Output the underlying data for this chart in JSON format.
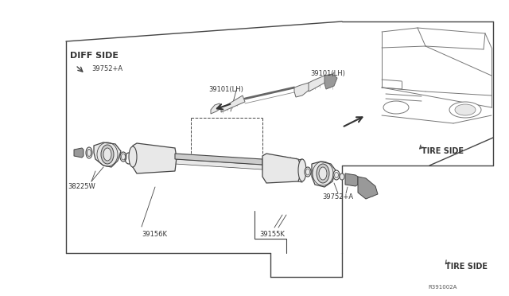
{
  "bg_color": "#f5f5f5",
  "line_color": "#444444",
  "gray_fill": "#cccccc",
  "light_fill": "#e8e8e8",
  "dark_fill": "#999999",
  "labels": {
    "diff_side": "DIFF SIDE",
    "tire_side_top": "TIRE SIDE",
    "tire_side_bottom": "TIRE SIDE",
    "part_39752A_top": "39752+A",
    "part_38225W": "38225W",
    "part_39156K": "39156K",
    "part_39101_LH_left": "39101(LH)",
    "part_39101_LH_right": "39101(LH)",
    "part_39752A_bottom": "39752+A",
    "part_39155K": "39155K",
    "ref_code": "R391002A"
  },
  "font_size_label": 7,
  "font_size_small": 6
}
